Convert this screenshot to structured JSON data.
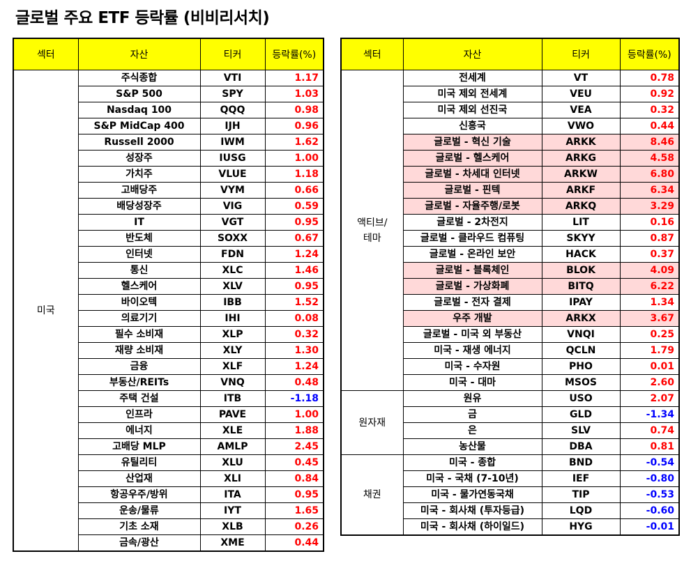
{
  "title": "글로벌 주요 ETF 등락률 (비비리서치)",
  "headers": {
    "sector": "섹터",
    "asset": "자산",
    "ticker": "티커",
    "change": "등락률(%)"
  },
  "colors": {
    "header_bg": "#ffff00",
    "positive": "#ff0000",
    "negative": "#0000ff",
    "highlight": "#ffd9d9"
  },
  "left_table": {
    "sector": "미국",
    "rows": [
      {
        "asset": "주식종합",
        "ticker": "VTI",
        "change": "1.17"
      },
      {
        "asset": "S&P 500",
        "ticker": "SPY",
        "change": "1.03"
      },
      {
        "asset": "Nasdaq 100",
        "ticker": "QQQ",
        "change": "0.98"
      },
      {
        "asset": "S&P MidCap 400",
        "ticker": "IJH",
        "change": "0.96"
      },
      {
        "asset": "Russell 2000",
        "ticker": "IWM",
        "change": "1.62"
      },
      {
        "asset": "성장주",
        "ticker": "IUSG",
        "change": "1.00"
      },
      {
        "asset": "가치주",
        "ticker": "VLUE",
        "change": "1.18"
      },
      {
        "asset": "고배당주",
        "ticker": "VYM",
        "change": "0.66"
      },
      {
        "asset": "배당성장주",
        "ticker": "VIG",
        "change": "0.59"
      },
      {
        "asset": "IT",
        "ticker": "VGT",
        "change": "0.95"
      },
      {
        "asset": "반도체",
        "ticker": "SOXX",
        "change": "0.67"
      },
      {
        "asset": "인터넷",
        "ticker": "FDN",
        "change": "1.24"
      },
      {
        "asset": "통신",
        "ticker": "XLC",
        "change": "1.46"
      },
      {
        "asset": "헬스케어",
        "ticker": "XLV",
        "change": "0.95"
      },
      {
        "asset": "바이오텍",
        "ticker": "IBB",
        "change": "1.52"
      },
      {
        "asset": "의료기기",
        "ticker": "IHI",
        "change": "0.08"
      },
      {
        "asset": "필수 소비재",
        "ticker": "XLP",
        "change": "0.32"
      },
      {
        "asset": "재량 소비재",
        "ticker": "XLY",
        "change": "1.30"
      },
      {
        "asset": "금융",
        "ticker": "XLF",
        "change": "1.24"
      },
      {
        "asset": "부동산/REITs",
        "ticker": "VNQ",
        "change": "0.48"
      },
      {
        "asset": "주택 건설",
        "ticker": "ITB",
        "change": "-1.18"
      },
      {
        "asset": "인프라",
        "ticker": "PAVE",
        "change": "1.00"
      },
      {
        "asset": "에너지",
        "ticker": "XLE",
        "change": "1.88"
      },
      {
        "asset": "고배당 MLP",
        "ticker": "AMLP",
        "change": "2.45"
      },
      {
        "asset": "유틸리티",
        "ticker": "XLU",
        "change": "0.45"
      },
      {
        "asset": "산업재",
        "ticker": "XLI",
        "change": "0.84"
      },
      {
        "asset": "항공우주/방위",
        "ticker": "ITA",
        "change": "0.95"
      },
      {
        "asset": "운송/물류",
        "ticker": "IYT",
        "change": "1.65"
      },
      {
        "asset": "기초 소재",
        "ticker": "XLB",
        "change": "0.26"
      },
      {
        "asset": "금속/광산",
        "ticker": "XME",
        "change": "0.44"
      }
    ]
  },
  "right_table": {
    "groups": [
      {
        "sector": "액티브/\n테마",
        "rows": [
          {
            "asset": "전세계",
            "ticker": "VT",
            "change": "0.78",
            "hl": false
          },
          {
            "asset": "미국 제외 전세계",
            "ticker": "VEU",
            "change": "0.92",
            "hl": false
          },
          {
            "asset": "미국 제외 선진국",
            "ticker": "VEA",
            "change": "0.32",
            "hl": false
          },
          {
            "asset": "신흥국",
            "ticker": "VWO",
            "change": "0.44",
            "hl": false
          },
          {
            "asset": "글로벌 - 혁신 기술",
            "ticker": "ARKK",
            "change": "8.46",
            "hl": true
          },
          {
            "asset": "글로벌 - 헬스케어",
            "ticker": "ARKG",
            "change": "4.58",
            "hl": true
          },
          {
            "asset": "글로벌 - 차세대 인터넷",
            "ticker": "ARKW",
            "change": "6.80",
            "hl": true
          },
          {
            "asset": "글로벌 - 핀텍",
            "ticker": "ARKF",
            "change": "6.34",
            "hl": true
          },
          {
            "asset": "글로벌 - 자율주행/로봇",
            "ticker": "ARKQ",
            "change": "3.29",
            "hl": true
          },
          {
            "asset": "글로벌 - 2차전지",
            "ticker": "LIT",
            "change": "0.16",
            "hl": false
          },
          {
            "asset": "글로벌 - 클라우드 컴퓨팅",
            "ticker": "SKYY",
            "change": "0.87",
            "hl": false
          },
          {
            "asset": "글로벌 - 온라인 보안",
            "ticker": "HACK",
            "change": "0.37",
            "hl": false
          },
          {
            "asset": "글로벌 - 블록체인",
            "ticker": "BLOK",
            "change": "4.09",
            "hl": true
          },
          {
            "asset": "글로벌 - 가상화폐",
            "ticker": "BITQ",
            "change": "6.22",
            "hl": true
          },
          {
            "asset": "글로벌 - 전자 결제",
            "ticker": "IPAY",
            "change": "1.34",
            "hl": false
          },
          {
            "asset": "우주 개발",
            "ticker": "ARKX",
            "change": "3.67",
            "hl": true
          },
          {
            "asset": "글로벌 - 미국 외 부동산",
            "ticker": "VNQI",
            "change": "0.25",
            "hl": false
          },
          {
            "asset": "미국 - 재생 에너지",
            "ticker": "QCLN",
            "change": "1.79",
            "hl": false
          },
          {
            "asset": "미국 - 수자원",
            "ticker": "PHO",
            "change": "0.01",
            "hl": false
          },
          {
            "asset": "미국 - 대마",
            "ticker": "MSOS",
            "change": "2.60",
            "hl": false
          }
        ]
      },
      {
        "sector": "원자재",
        "rows": [
          {
            "asset": "원유",
            "ticker": "USO",
            "change": "2.07",
            "hl": false
          },
          {
            "asset": "금",
            "ticker": "GLD",
            "change": "-1.34",
            "hl": false
          },
          {
            "asset": "은",
            "ticker": "SLV",
            "change": "0.74",
            "hl": false
          },
          {
            "asset": "농산물",
            "ticker": "DBA",
            "change": "0.81",
            "hl": false
          }
        ]
      },
      {
        "sector": "채권",
        "rows": [
          {
            "asset": "미국 - 종합",
            "ticker": "BND",
            "change": "-0.54",
            "hl": false
          },
          {
            "asset": "미국 - 국채 (7-10년)",
            "ticker": "IEF",
            "change": "-0.80",
            "hl": false
          },
          {
            "asset": "미국 - 물가연동국채",
            "ticker": "TIP",
            "change": "-0.53",
            "hl": false
          },
          {
            "asset": "미국 - 회사채 (투자등급)",
            "ticker": "LQD",
            "change": "-0.60",
            "hl": false
          },
          {
            "asset": "미국 - 회사채 (하이일드)",
            "ticker": "HYG",
            "change": "-0.01",
            "hl": false
          }
        ]
      }
    ]
  }
}
